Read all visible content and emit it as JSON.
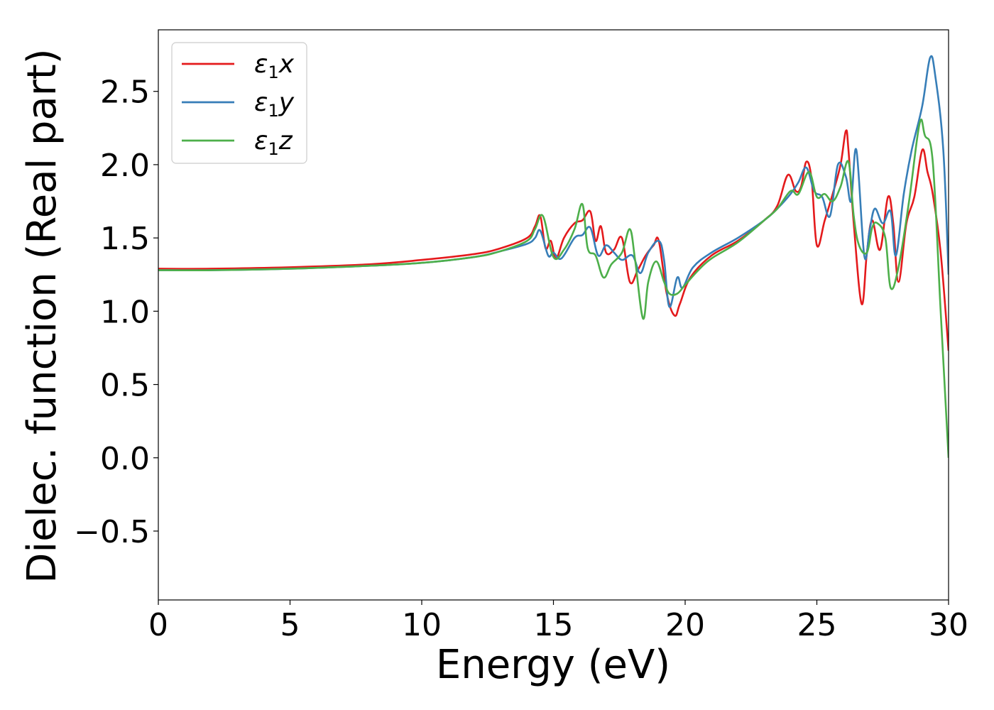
{
  "chart_data": {
    "type": "line",
    "title": "",
    "xlabel": "Energy (eV)",
    "ylabel": "Dielec. function (Real part)",
    "xlim": [
      0,
      30
    ],
    "ylim": [
      -0.97,
      2.92
    ],
    "xticks": [
      0,
      5,
      10,
      15,
      20,
      25,
      30
    ],
    "xtick_labels": [
      "0",
      "5",
      "10",
      "15",
      "20",
      "25",
      "30"
    ],
    "yticks": [
      -0.5,
      0.0,
      0.5,
      1.0,
      1.5,
      2.0,
      2.5
    ],
    "ytick_labels": [
      "−0.5",
      "0.0",
      "0.5",
      "1.0",
      "1.5",
      "2.0",
      "2.5"
    ],
    "grid": false,
    "legend_position": "top-left",
    "series": [
      {
        "name": "ε1x",
        "label_base": "ε",
        "label_sub": "1",
        "label_var": "x",
        "color": "#e41a1c",
        "x": [
          0,
          2,
          5,
          8,
          10,
          12,
          13,
          14,
          14.3,
          14.5,
          14.7,
          14.9,
          15.1,
          15.4,
          15.8,
          16.1,
          16.4,
          16.6,
          16.8,
          17.0,
          17.3,
          17.6,
          17.9,
          18.2,
          18.5,
          18.8,
          19.0,
          19.3,
          19.6,
          19.8,
          20.2,
          21,
          22,
          23,
          23.5,
          23.9,
          24.2,
          24.4,
          24.6,
          24.8,
          25.0,
          25.3,
          25.6,
          25.9,
          26.1,
          26.2,
          26.4,
          26.7,
          26.9,
          27.1,
          27.4,
          27.7,
          27.9,
          28.1,
          28.4,
          28.7,
          29.0,
          29.2,
          29.4,
          29.7,
          30.0
        ],
        "y": [
          1.29,
          1.29,
          1.3,
          1.32,
          1.35,
          1.39,
          1.43,
          1.5,
          1.58,
          1.65,
          1.43,
          1.48,
          1.36,
          1.5,
          1.6,
          1.62,
          1.68,
          1.48,
          1.58,
          1.4,
          1.42,
          1.5,
          1.2,
          1.28,
          1.38,
          1.45,
          1.48,
          1.12,
          0.97,
          1.05,
          1.23,
          1.38,
          1.48,
          1.62,
          1.72,
          1.93,
          1.82,
          1.85,
          2.02,
          1.9,
          1.45,
          1.62,
          1.8,
          2.0,
          2.23,
          2.1,
          1.6,
          1.05,
          1.4,
          1.62,
          1.42,
          1.78,
          1.6,
          1.2,
          1.6,
          1.78,
          2.1,
          1.95,
          1.8,
          1.4,
          0.73
        ]
      },
      {
        "name": "ε1y",
        "label_base": "ε",
        "label_sub": "1",
        "label_var": "y",
        "color": "#377eb8",
        "x": [
          0,
          2,
          5,
          8,
          10,
          12,
          13,
          14,
          14.3,
          14.5,
          14.8,
          15.0,
          15.3,
          15.8,
          16.1,
          16.4,
          16.7,
          17.0,
          17.3,
          17.6,
          18.0,
          18.3,
          18.6,
          19.0,
          19.2,
          19.4,
          19.7,
          19.9,
          20.3,
          21,
          22,
          23,
          23.5,
          24,
          24.3,
          24.6,
          24.9,
          25.2,
          25.5,
          25.8,
          26.1,
          26.3,
          26.5,
          26.8,
          27.0,
          27.2,
          27.5,
          27.8,
          28.0,
          28.3,
          28.6,
          29.0,
          29.3,
          29.5,
          29.8,
          30.0
        ],
        "y": [
          1.28,
          1.28,
          1.29,
          1.31,
          1.33,
          1.37,
          1.41,
          1.46,
          1.5,
          1.55,
          1.38,
          1.4,
          1.36,
          1.5,
          1.52,
          1.57,
          1.38,
          1.45,
          1.4,
          1.35,
          1.38,
          1.26,
          1.4,
          1.48,
          1.35,
          1.03,
          1.23,
          1.16,
          1.3,
          1.4,
          1.5,
          1.62,
          1.7,
          1.8,
          1.88,
          1.98,
          1.82,
          1.78,
          1.65,
          2.0,
          1.92,
          1.75,
          2.1,
          1.38,
          1.55,
          1.7,
          1.6,
          1.68,
          1.38,
          1.8,
          2.1,
          2.4,
          2.73,
          2.6,
          2.1,
          1.25
        ]
      },
      {
        "name": "ε1z",
        "label_base": "ε",
        "label_sub": "1",
        "label_var": "z",
        "color": "#4daf4a",
        "x": [
          0,
          2,
          5,
          8,
          10,
          12,
          13,
          14,
          14.3,
          14.6,
          15.0,
          15.4,
          15.8,
          16.1,
          16.3,
          16.6,
          16.9,
          17.2,
          17.6,
          17.9,
          18.1,
          18.4,
          18.6,
          18.9,
          19.2,
          19.4,
          19.7,
          20.0,
          20.5,
          21,
          22,
          23,
          23.5,
          24,
          24.3,
          24.7,
          25.0,
          25.3,
          25.6,
          25.9,
          26.2,
          26.4,
          26.6,
          26.9,
          27.1,
          27.3,
          27.6,
          27.8,
          28.1,
          28.5,
          28.9,
          29.1,
          29.4,
          29.7,
          30.0
        ],
        "y": [
          1.28,
          1.28,
          1.29,
          1.31,
          1.33,
          1.37,
          1.41,
          1.48,
          1.56,
          1.65,
          1.37,
          1.42,
          1.56,
          1.73,
          1.43,
          1.38,
          1.23,
          1.32,
          1.4,
          1.56,
          1.35,
          0.95,
          1.2,
          1.34,
          1.2,
          1.12,
          1.12,
          1.18,
          1.28,
          1.36,
          1.47,
          1.62,
          1.7,
          1.82,
          1.8,
          1.95,
          1.78,
          1.8,
          1.75,
          1.85,
          2.02,
          1.65,
          1.45,
          1.4,
          1.57,
          1.6,
          1.5,
          1.16,
          1.3,
          1.75,
          2.28,
          2.2,
          2.02,
          1.0,
          0.0
        ]
      }
    ]
  }
}
